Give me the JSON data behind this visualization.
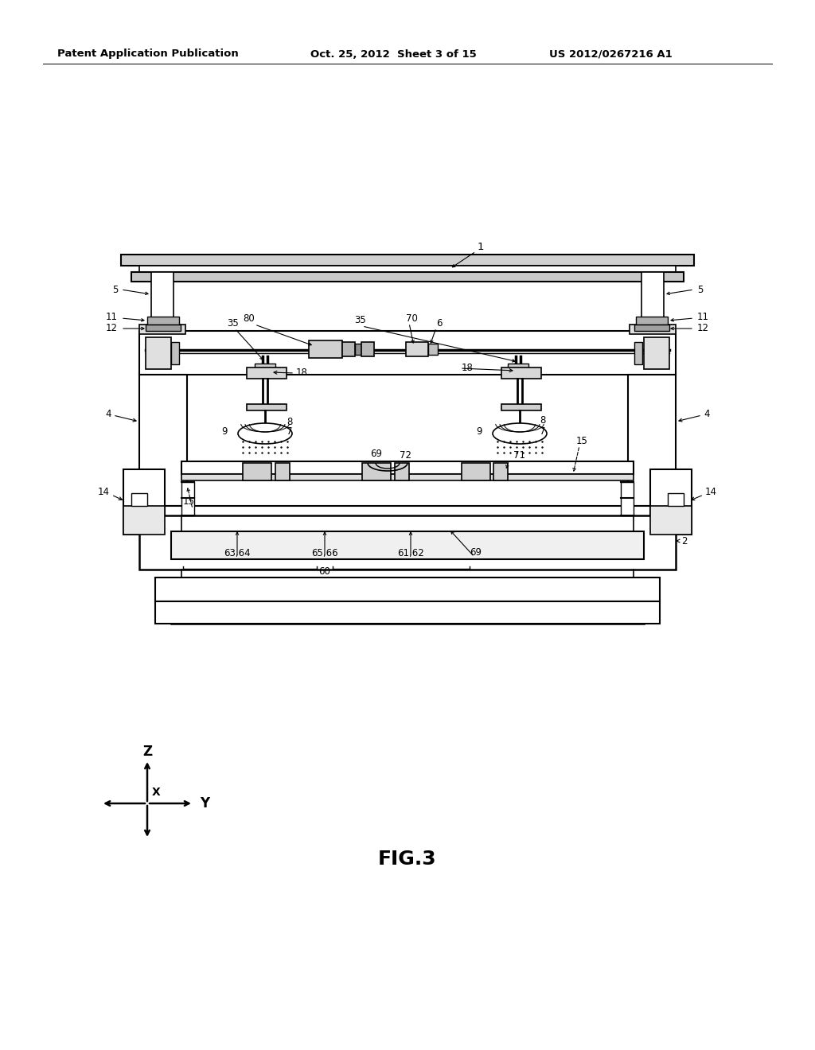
{
  "header_left": "Patent Application Publication",
  "header_mid": "Oct. 25, 2012  Sheet 3 of 15",
  "header_right": "US 2012/0267216 A1",
  "fig_label": "FIG.3",
  "bg_color": "#ffffff",
  "line_color": "#000000",
  "header_fontsize": 9.5,
  "fig_label_fontsize": 18,
  "label_fontsize": 8.5
}
